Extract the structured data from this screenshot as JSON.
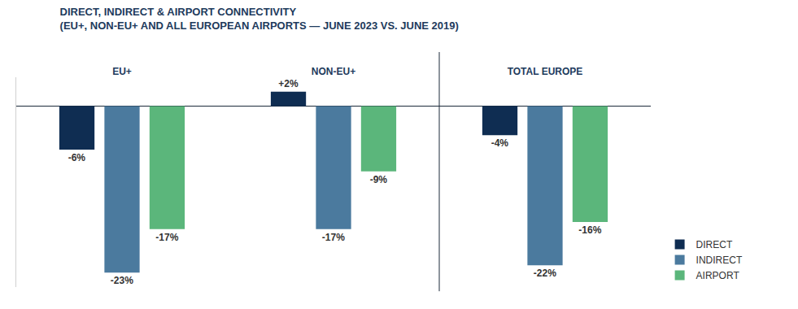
{
  "chart_data": {
    "type": "bar",
    "title": "DIRECT, INDIRECT & AIRPORT CONNECTIVITY",
    "subtitle": "(EU+, NON-EU+ AND ALL EUROPEAN AIRPORTS — JUNE 2023 VS. JUNE 2019)",
    "categories": [
      "EU+",
      "NON-EU+",
      "TOTAL EUROPE"
    ],
    "series": [
      {
        "name": "DIRECT",
        "color": "#0f2d52",
        "values": [
          -6,
          2,
          -4
        ],
        "value_labels": [
          "-6%",
          "+2%",
          "-4%"
        ]
      },
      {
        "name": "INDIRECT",
        "color": "#4b7a9e",
        "values": [
          -23,
          -17,
          -22
        ],
        "value_labels": [
          "-23%",
          "-17%",
          "-22%"
        ]
      },
      {
        "name": "AIRPORT",
        "color": "#5bb67b",
        "values": [
          -17,
          -9,
          -16
        ],
        "value_labels": [
          "-17%",
          "-9%",
          "-16%"
        ]
      }
    ],
    "ylim": [
      -25,
      4
    ],
    "yticks": [
      0
    ],
    "grid": false,
    "legend": "lower right",
    "data_labels": true,
    "tick_labels": "x"
  }
}
